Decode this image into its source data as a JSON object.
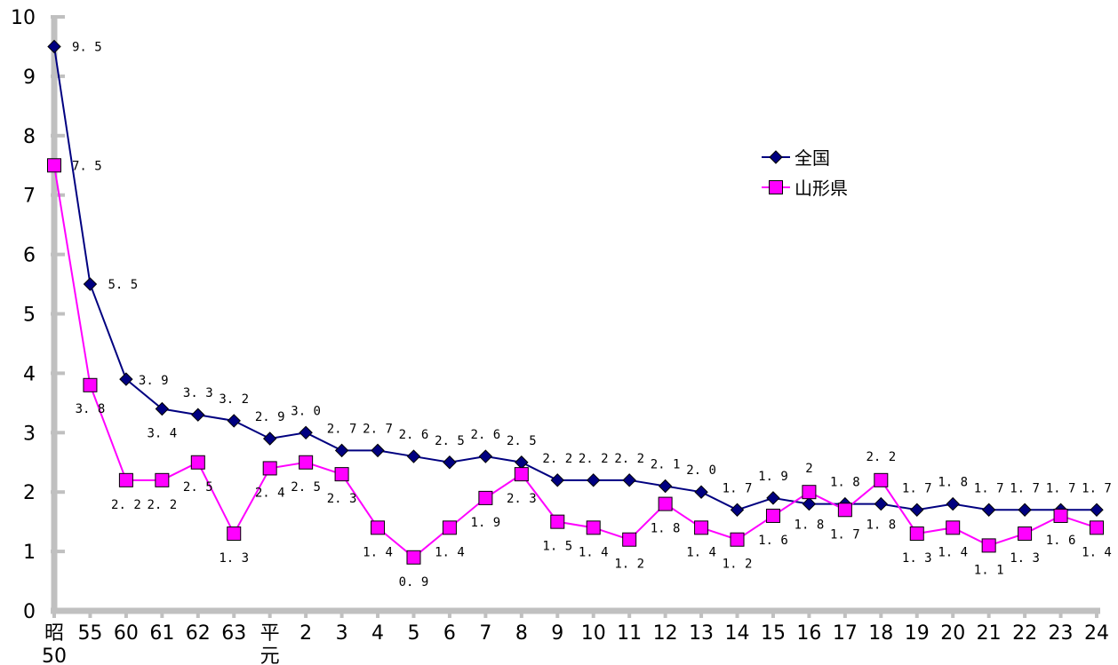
{
  "chart_data": {
    "type": "line",
    "categories": [
      [
        "昭",
        "50"
      ],
      [
        "55"
      ],
      [
        "60"
      ],
      [
        "61"
      ],
      [
        "62"
      ],
      [
        "63"
      ],
      [
        "平",
        "元"
      ],
      [
        "2"
      ],
      [
        "3"
      ],
      [
        "4"
      ],
      [
        "5"
      ],
      [
        "6"
      ],
      [
        "7"
      ],
      [
        "8"
      ],
      [
        "9"
      ],
      [
        "10"
      ],
      [
        "11"
      ],
      [
        "12"
      ],
      [
        "13"
      ],
      [
        "14"
      ],
      [
        "15"
      ],
      [
        "16"
      ],
      [
        "17"
      ],
      [
        "18"
      ],
      [
        "19"
      ],
      [
        "20"
      ],
      [
        "21"
      ],
      [
        "22"
      ],
      [
        "23"
      ],
      [
        "24"
      ]
    ],
    "series": [
      {
        "name": "全国",
        "color": "#000080",
        "marker": "diamond",
        "values": [
          9.5,
          5.5,
          3.9,
          3.4,
          3.3,
          3.2,
          2.9,
          3.0,
          2.7,
          2.7,
          2.6,
          2.5,
          2.6,
          2.5,
          2.2,
          2.2,
          2.2,
          2.1,
          2.0,
          1.7,
          1.9,
          1.8,
          1.8,
          1.8,
          1.7,
          1.8,
          1.7,
          1.7,
          1.7,
          1.7
        ],
        "labels": [
          "9. 5",
          "5. 5",
          "3. 9",
          "3. 4",
          "3. 3",
          "3. 2",
          "2. 9",
          "3. 0",
          "2. 7",
          "2. 7",
          "2. 6",
          "2. 5",
          "2. 6",
          "2. 5",
          "2. 2",
          "2. 2",
          "2. 2",
          "2. 1",
          "2. 0",
          "1. 7",
          "1. 9",
          "1. 8",
          "1. 8",
          "1. 8",
          "1. 7",
          "1. 8",
          "1. 7",
          "1. 7",
          "1. 7",
          "1. 7"
        ]
      },
      {
        "name": "山形県",
        "color": "#FF00FF",
        "marker": "square",
        "values": [
          7.5,
          3.8,
          2.2,
          2.2,
          2.5,
          1.3,
          2.4,
          2.5,
          2.3,
          1.4,
          0.9,
          1.4,
          1.9,
          2.3,
          1.5,
          1.4,
          1.2,
          1.8,
          1.4,
          1.2,
          1.6,
          2.0,
          1.7,
          2.2,
          1.3,
          1.4,
          1.1,
          1.3,
          1.6,
          1.4
        ],
        "labels": [
          "7. 5",
          "3. 8",
          "2. 2",
          "2. 2",
          "2. 5",
          "1. 3",
          "2. 4",
          "2. 5",
          "2. 3",
          "1. 4",
          "0. 9",
          "1. 4",
          "1. 9",
          "2. 3",
          "1. 5",
          "1. 4",
          "1. 2",
          "1. 8",
          "1. 4",
          "1. 2",
          "1. 6",
          "2",
          "1. 7",
          "2. 2",
          "1. 3",
          "1. 4",
          "1. 1",
          "1. 3",
          "1. 6",
          "1. 4"
        ]
      }
    ],
    "yticks": [
      "0",
      "1",
      "2",
      "3",
      "4",
      "5",
      "6",
      "7",
      "8",
      "9",
      "10"
    ],
    "ylim": [
      0,
      10
    ],
    "grid": false,
    "legend": "right, upper-middle"
  }
}
